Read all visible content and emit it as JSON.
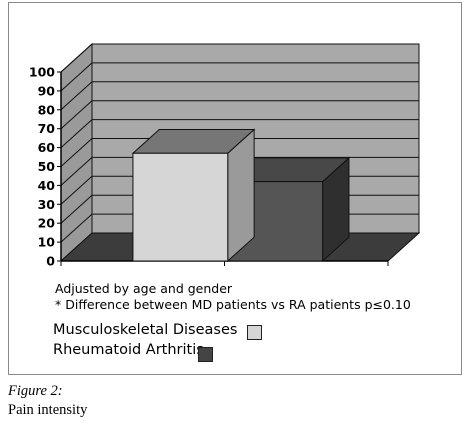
{
  "chart_data": {
    "type": "bar",
    "three_d": true,
    "categories": [
      "Musculoskeletal Diseases",
      "Rheumatoid Arthritis"
    ],
    "values": [
      57,
      42
    ],
    "colors": [
      "#d6d6d6",
      "#555555"
    ],
    "ylim": [
      0,
      100
    ],
    "yticks": [
      "0",
      "10",
      "20",
      "30",
      "40",
      "50",
      "60",
      "70",
      "80",
      "90",
      "100"
    ],
    "grid": true,
    "legend_position": "bottom-left",
    "notes": [
      "Adjusted by age and gender",
      "* Difference between MD patients vs RA patients p≤0.10"
    ]
  },
  "legend": {
    "items": [
      {
        "label": "Musculoskeletal Diseases",
        "color": "#d6d6d6"
      },
      {
        "label": "Rheumatoid Arthritis",
        "color": "#444444"
      }
    ]
  },
  "caption": {
    "figure_label": "Figure 2:",
    "text": "Pain intensity"
  }
}
